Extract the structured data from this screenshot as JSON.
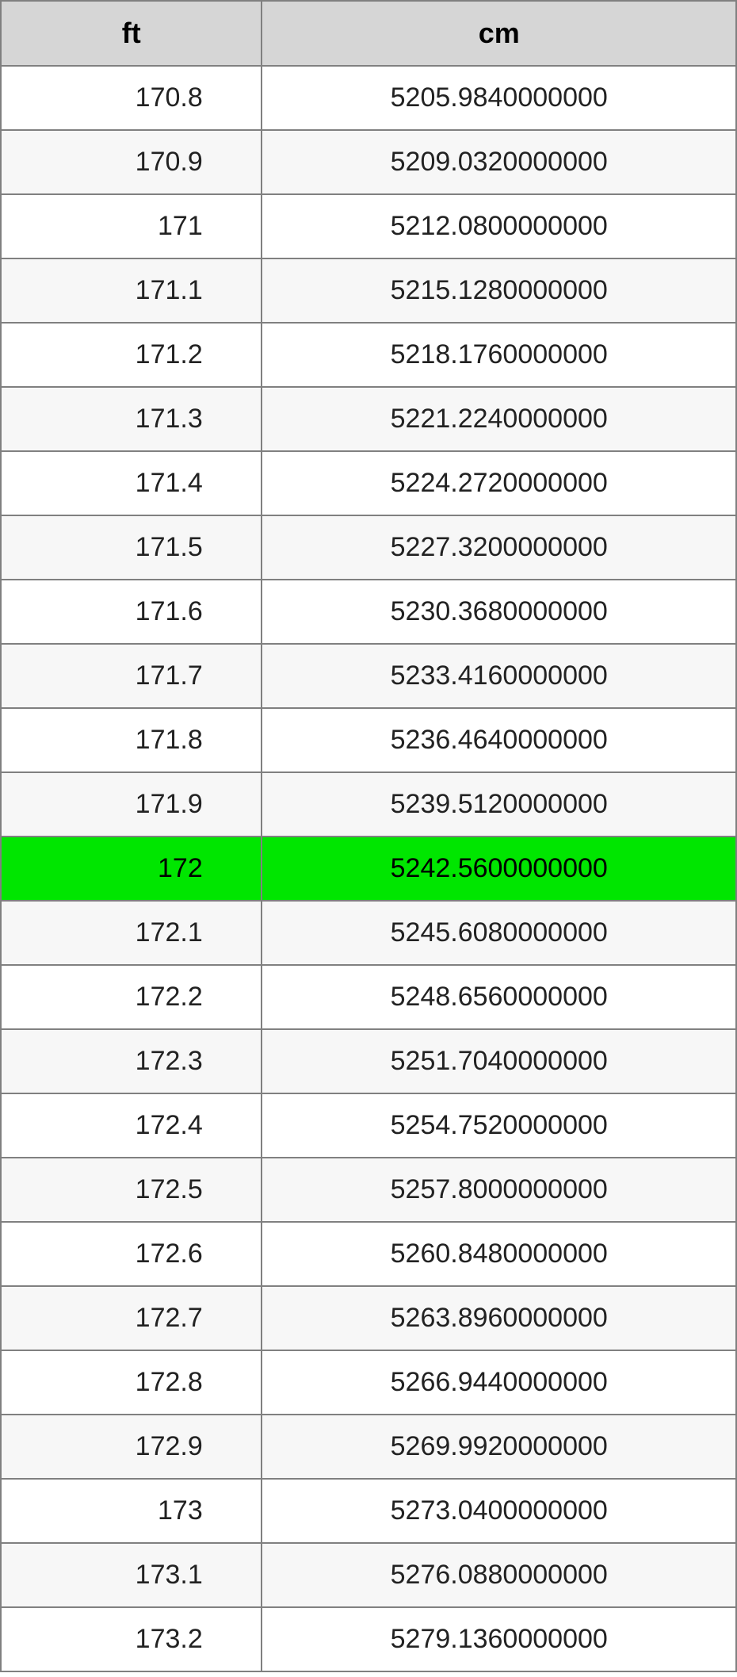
{
  "table": {
    "columns": [
      {
        "key": "ft",
        "label": "ft",
        "width_pct": 35.5
      },
      {
        "key": "cm",
        "label": "cm",
        "width_pct": 64.5
      }
    ],
    "header_bg": "#d6d6d6",
    "header_font_size_pt": 27,
    "cell_font_size_pt": 25,
    "border_color": "#808080",
    "zebra_colors": {
      "odd": "#ffffff",
      "even": "#f7f7f7"
    },
    "highlight_color": "#00e600",
    "highlight_row_index": 12,
    "rows": [
      {
        "ft": "170.8",
        "cm": "5205.9840000000"
      },
      {
        "ft": "170.9",
        "cm": "5209.0320000000"
      },
      {
        "ft": "171",
        "cm": "5212.0800000000"
      },
      {
        "ft": "171.1",
        "cm": "5215.1280000000"
      },
      {
        "ft": "171.2",
        "cm": "5218.1760000000"
      },
      {
        "ft": "171.3",
        "cm": "5221.2240000000"
      },
      {
        "ft": "171.4",
        "cm": "5224.2720000000"
      },
      {
        "ft": "171.5",
        "cm": "5227.3200000000"
      },
      {
        "ft": "171.6",
        "cm": "5230.3680000000"
      },
      {
        "ft": "171.7",
        "cm": "5233.4160000000"
      },
      {
        "ft": "171.8",
        "cm": "5236.4640000000"
      },
      {
        "ft": "171.9",
        "cm": "5239.5120000000"
      },
      {
        "ft": "172",
        "cm": "5242.5600000000"
      },
      {
        "ft": "172.1",
        "cm": "5245.6080000000"
      },
      {
        "ft": "172.2",
        "cm": "5248.6560000000"
      },
      {
        "ft": "172.3",
        "cm": "5251.7040000000"
      },
      {
        "ft": "172.4",
        "cm": "5254.7520000000"
      },
      {
        "ft": "172.5",
        "cm": "5257.8000000000"
      },
      {
        "ft": "172.6",
        "cm": "5260.8480000000"
      },
      {
        "ft": "172.7",
        "cm": "5263.8960000000"
      },
      {
        "ft": "172.8",
        "cm": "5266.9440000000"
      },
      {
        "ft": "172.9",
        "cm": "5269.9920000000"
      },
      {
        "ft": "173",
        "cm": "5273.0400000000"
      },
      {
        "ft": "173.1",
        "cm": "5276.0880000000"
      },
      {
        "ft": "173.2",
        "cm": "5279.1360000000"
      }
    ]
  }
}
